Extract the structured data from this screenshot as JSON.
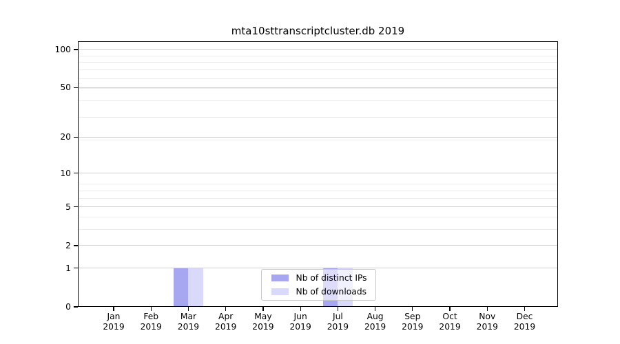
{
  "chart_data": {
    "type": "bar",
    "title": "mta10sttranscriptcluster.db 2019",
    "categories": [
      "Jan 2019",
      "Feb 2019",
      "Mar 2019",
      "Apr 2019",
      "May 2019",
      "Jun 2019",
      "Jul 2019",
      "Aug 2019",
      "Sep 2019",
      "Oct 2019",
      "Nov 2019",
      "Dec 2019"
    ],
    "series": [
      {
        "name": "Nb of distinct IPs",
        "color": "#a7a7f1",
        "values": [
          0,
          0,
          1,
          0,
          0,
          0,
          1,
          0,
          0,
          0,
          0,
          0
        ]
      },
      {
        "name": "Nb of downloads",
        "color": "#d9d9f9",
        "values": [
          0,
          0,
          1,
          0,
          0,
          0,
          1,
          0,
          0,
          0,
          0,
          0
        ]
      }
    ],
    "xlabel": "",
    "ylabel": "",
    "y_ticks": [
      0,
      1,
      2,
      5,
      10,
      20,
      50,
      100
    ],
    "y_scale": "log10(1+y)",
    "ylim": [
      0,
      115
    ],
    "grid": "horizontal",
    "legend_position": "inside-bottom-center"
  },
  "colors": {
    "distinct_ips_bar": "#a7a7f1",
    "downloads_bar": "#d9d9f9",
    "major_grid": "#cfcfcf",
    "minor_grid": "#ededed",
    "axis": "#000000"
  }
}
